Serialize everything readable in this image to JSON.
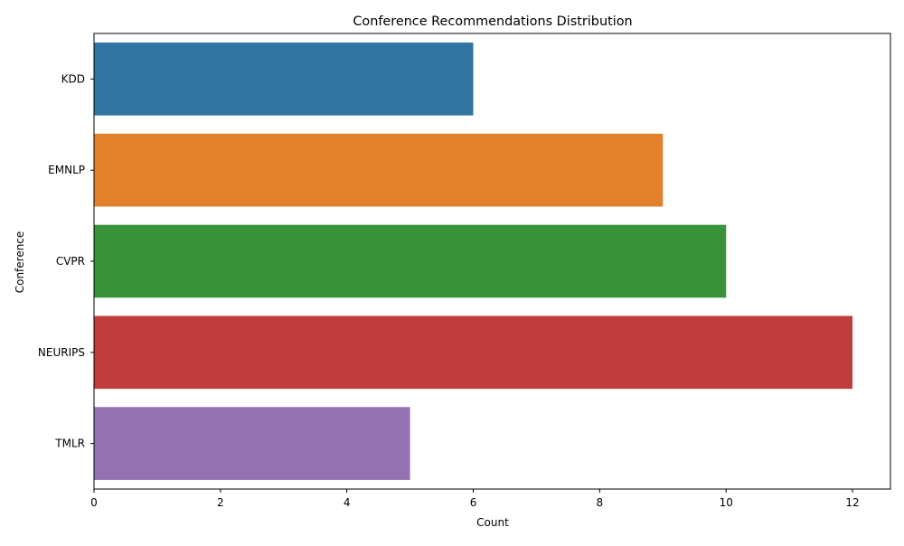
{
  "chart_data": {
    "type": "bar",
    "orientation": "horizontal",
    "title": "Conference Recommendations Distribution",
    "xlabel": "Count",
    "ylabel": "Conference",
    "categories": [
      "KDD",
      "EMNLP",
      "CVPR",
      "NEURIPS",
      "TMLR"
    ],
    "values": [
      6,
      9,
      10,
      12,
      5
    ],
    "colors": [
      "#3274a1",
      "#e1812c",
      "#3a923a",
      "#c03d3e",
      "#9372b2"
    ],
    "xlim": [
      0,
      12.6
    ],
    "xticks": [
      0,
      2,
      4,
      6,
      8,
      10,
      12
    ],
    "grid": false,
    "legend": "none"
  }
}
